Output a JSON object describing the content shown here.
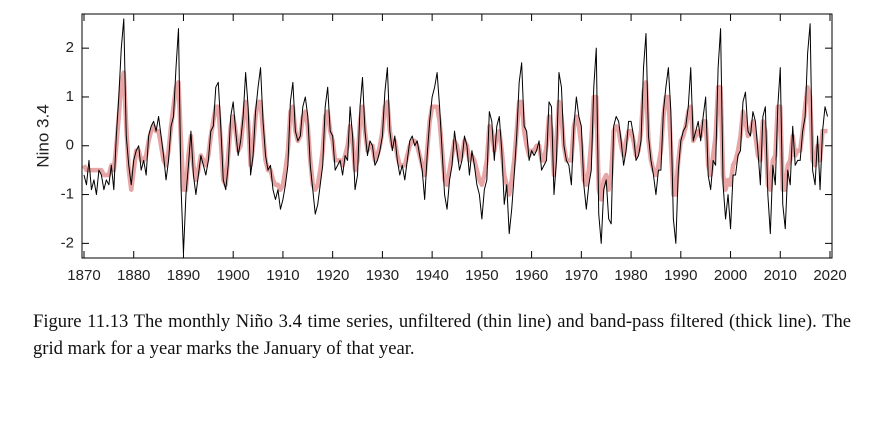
{
  "chart_data": {
    "type": "line",
    "ylabel": "Nino 3.4",
    "caption": "Figure 11.13 The monthly Niño 3.4 time series, unfiltered (thin line) and band-pass filtered (thick line). The grid mark for a year marks the January of that year.",
    "xlim": [
      1869.6,
      2020.4
    ],
    "ylim": [
      -2.3,
      2.7
    ],
    "xticks": [
      1870,
      1880,
      1890,
      1900,
      1910,
      1920,
      1930,
      1940,
      1950,
      1960,
      1970,
      1980,
      1990,
      2000,
      2010,
      2020
    ],
    "yticks": [
      -2,
      -1,
      0,
      1,
      2
    ],
    "x": [
      1870,
      1870.5,
      1871,
      1871.5,
      1872,
      1872.5,
      1873,
      1873.5,
      1874,
      1874.5,
      1875,
      1875.5,
      1876,
      1876.5,
      1877,
      1877.5,
      1878,
      1878.5,
      1879,
      1879.5,
      1880,
      1880.5,
      1881,
      1881.5,
      1882,
      1882.5,
      1883,
      1883.5,
      1884,
      1884.5,
      1885,
      1885.5,
      1886,
      1886.5,
      1887,
      1887.5,
      1888,
      1888.5,
      1889,
      1889.5,
      1890,
      1890.5,
      1891,
      1891.5,
      1892,
      1892.5,
      1893,
      1893.5,
      1894,
      1894.5,
      1895,
      1895.5,
      1896,
      1896.5,
      1897,
      1897.5,
      1898,
      1898.5,
      1899,
      1899.5,
      1900,
      1900.5,
      1901,
      1901.5,
      1902,
      1902.5,
      1903,
      1903.5,
      1904,
      1904.5,
      1905,
      1905.5,
      1906,
      1906.5,
      1907,
      1907.5,
      1908,
      1908.5,
      1909,
      1909.5,
      1910,
      1910.5,
      1911,
      1911.5,
      1912,
      1912.5,
      1913,
      1913.5,
      1914,
      1914.5,
      1915,
      1915.5,
      1916,
      1916.5,
      1917,
      1917.5,
      1918,
      1918.5,
      1919,
      1919.5,
      1920,
      1920.5,
      1921,
      1921.5,
      1922,
      1922.5,
      1923,
      1923.5,
      1924,
      1924.5,
      1925,
      1925.5,
      1926,
      1926.5,
      1927,
      1927.5,
      1928,
      1928.5,
      1929,
      1929.5,
      1930,
      1930.5,
      1931,
      1931.5,
      1932,
      1932.5,
      1933,
      1933.5,
      1934,
      1934.5,
      1935,
      1935.5,
      1936,
      1936.5,
      1937,
      1937.5,
      1938,
      1938.5,
      1939,
      1939.5,
      1940,
      1940.5,
      1941,
      1941.5,
      1942,
      1942.5,
      1943,
      1943.5,
      1944,
      1944.5,
      1945,
      1945.5,
      1946,
      1946.5,
      1947,
      1947.5,
      1948,
      1948.5,
      1949,
      1949.5,
      1950,
      1950.5,
      1951,
      1951.5,
      1952,
      1952.5,
      1953,
      1953.5,
      1954,
      1954.5,
      1955,
      1955.5,
      1956,
      1956.5,
      1957,
      1957.5,
      1958,
      1958.5,
      1959,
      1959.5,
      1960,
      1960.5,
      1961,
      1961.5,
      1962,
      1962.5,
      1963,
      1963.5,
      1964,
      1964.5,
      1965,
      1965.5,
      1966,
      1966.5,
      1967,
      1967.5,
      1968,
      1968.5,
      1969,
      1969.5,
      1970,
      1970.5,
      1971,
      1971.5,
      1972,
      1972.5,
      1973,
      1973.5,
      1974,
      1974.5,
      1975,
      1975.5,
      1976,
      1976.5,
      1977,
      1977.5,
      1978,
      1978.5,
      1979,
      1979.5,
      1980,
      1980.5,
      1981,
      1981.5,
      1982,
      1982.5,
      1983,
      1983.5,
      1984,
      1984.5,
      1985,
      1985.5,
      1986,
      1986.5,
      1987,
      1987.5,
      1988,
      1988.5,
      1989,
      1989.5,
      1990,
      1990.5,
      1991,
      1991.5,
      1992,
      1992.5,
      1993,
      1993.5,
      1994,
      1994.5,
      1995,
      1995.5,
      1996,
      1996.5,
      1997,
      1997.5,
      1998,
      1998.5,
      1999,
      1999.5,
      2000,
      2000.5,
      2001,
      2001.5,
      2002,
      2002.5,
      2003,
      2003.5,
      2004,
      2004.5,
      2005,
      2005.5,
      2006,
      2006.5,
      2007,
      2007.5,
      2008,
      2008.5,
      2009,
      2009.5,
      2010,
      2010.5,
      2011,
      2011.5,
      2012,
      2012.5,
      2013,
      2013.5,
      2014,
      2014.5,
      2015,
      2015.5,
      2016,
      2016.5,
      2017,
      2017.5,
      2018,
      2018.5,
      2019,
      2019.5
    ],
    "series": [
      {
        "color": "#e8a5a5",
        "width": 4.5,
        "values": [
          -0.4,
          -0.5,
          -0.5,
          -0.5,
          -0.5,
          -0.5,
          -0.5,
          -0.5,
          -0.6,
          -0.6,
          -0.6,
          -0.4,
          -0.5,
          0.0,
          0.6,
          1.3,
          1.5,
          0.4,
          -0.5,
          -0.9,
          -0.5,
          -0.1,
          -0.1,
          -0.3,
          -0.3,
          -0.2,
          0.1,
          0.3,
          0.4,
          0.3,
          0.3,
          0.0,
          -0.3,
          -0.4,
          -0.1,
          0.4,
          0.8,
          1.2,
          1.3,
          0.1,
          -0.9,
          -0.9,
          -0.2,
          0.2,
          -0.4,
          -0.7,
          -0.5,
          -0.2,
          -0.3,
          -0.4,
          -0.2,
          0.2,
          0.5,
          0.8,
          0.8,
          0.1,
          -0.7,
          -0.8,
          -0.2,
          0.4,
          0.6,
          0.3,
          -0.1,
          0.0,
          0.5,
          0.9,
          0.5,
          -0.4,
          0.0,
          0.6,
          0.9,
          0.9,
          0.3,
          -0.3,
          -0.5,
          -0.5,
          -0.7,
          -0.8,
          -0.8,
          -0.9,
          -0.8,
          -0.5,
          -0.1,
          0.7,
          0.8,
          0.3,
          0.1,
          0.2,
          0.6,
          0.7,
          0.4,
          -0.3,
          -0.8,
          -0.9,
          -0.8,
          -0.5,
          -0.1,
          0.6,
          0.7,
          0.3,
          0.1,
          -0.3,
          -0.3,
          -0.3,
          -0.4,
          -0.2,
          0.0,
          0.4,
          0.1,
          -0.5,
          -0.3,
          0.5,
          0.8,
          0.3,
          -0.1,
          0.0,
          0.0,
          -0.3,
          -0.2,
          0.0,
          0.3,
          0.8,
          0.9,
          0.3,
          0.0,
          0.1,
          -0.2,
          -0.4,
          -0.4,
          -0.4,
          -0.2,
          0.0,
          0.1,
          0.1,
          0.0,
          -0.2,
          -0.4,
          -0.6,
          -0.1,
          0.5,
          0.8,
          0.8,
          0.8,
          0.5,
          -0.1,
          -0.7,
          -0.8,
          -0.5,
          -0.2,
          0.1,
          0.0,
          -0.3,
          -0.2,
          0.1,
          0.0,
          -0.3,
          -0.2,
          -0.3,
          -0.5,
          -0.7,
          -0.8,
          -0.6,
          -0.3,
          0.4,
          0.3,
          -0.1,
          0.2,
          0.3,
          -0.1,
          -0.6,
          -0.8,
          -1.0,
          -0.7,
          -0.3,
          0.3,
          0.9,
          0.9,
          0.3,
          0.0,
          -0.2,
          -0.1,
          -0.1,
          0.0,
          0.0,
          -0.3,
          -0.3,
          0.0,
          0.6,
          0.3,
          -0.6,
          0.1,
          0.9,
          0.6,
          0.0,
          -0.3,
          -0.3,
          -0.3,
          0.4,
          0.6,
          0.4,
          0.0,
          -0.7,
          -0.8,
          -0.5,
          0.1,
          1.0,
          1.0,
          -0.9,
          -1.1,
          -0.7,
          -0.6,
          -0.9,
          -0.6,
          0.3,
          0.4,
          0.3,
          0.0,
          -0.2,
          0.1,
          0.3,
          0.3,
          0.1,
          -0.2,
          -0.1,
          0.3,
          1.1,
          1.3,
          0.1,
          -0.3,
          -0.5,
          -0.6,
          -0.4,
          -0.1,
          0.6,
          1.0,
          1.0,
          0.0,
          -1.0,
          -1.0,
          -0.3,
          0.1,
          0.2,
          0.4,
          0.7,
          0.8,
          0.1,
          0.2,
          0.3,
          0.2,
          0.5,
          0.5,
          -0.4,
          -0.6,
          -0.2,
          0.2,
          1.2,
          1.2,
          -0.6,
          -0.9,
          -0.7,
          -0.8,
          -0.4,
          -0.3,
          -0.1,
          0.2,
          0.7,
          0.5,
          0.2,
          0.3,
          0.5,
          0.2,
          -0.2,
          -0.3,
          0.5,
          0.3,
          -0.8,
          -0.9,
          -0.3,
          -0.2,
          0.8,
          0.8,
          -0.9,
          -0.9,
          -0.4,
          -0.3,
          0.2,
          -0.2,
          -0.1,
          -0.1,
          0.3,
          0.8,
          1.2,
          1.0,
          -0.3,
          -0.4,
          0.0,
          -0.3,
          0.3,
          0.3,
          0.3
        ]
      },
      {
        "color": "#000000",
        "width": 1,
        "values": [
          -0.6,
          -0.8,
          -0.3,
          -0.9,
          -0.7,
          -1.0,
          -0.5,
          -0.6,
          -0.9,
          -0.7,
          -0.8,
          -0.4,
          -0.9,
          0.2,
          1.0,
          2.0,
          2.6,
          0.2,
          -0.4,
          -0.8,
          -0.3,
          -0.1,
          0.0,
          -0.5,
          -0.3,
          -0.6,
          0.2,
          0.4,
          0.5,
          0.3,
          0.6,
          0.2,
          -0.2,
          -0.7,
          -0.3,
          0.4,
          0.6,
          1.6,
          2.4,
          -0.8,
          -2.2,
          -1.0,
          -0.4,
          0.3,
          -0.6,
          -1.0,
          -0.6,
          -0.2,
          -0.4,
          -0.6,
          -0.3,
          0.3,
          0.4,
          1.2,
          1.3,
          0.4,
          -0.7,
          -0.9,
          -0.4,
          0.6,
          0.9,
          0.3,
          -0.2,
          0.1,
          0.6,
          1.5,
          0.8,
          -0.6,
          -0.2,
          0.7,
          1.2,
          1.6,
          0.5,
          -0.2,
          -0.5,
          -0.4,
          -0.9,
          -1.1,
          -0.9,
          -1.3,
          -1.1,
          -0.8,
          -0.4,
          0.9,
          1.3,
          0.3,
          0.1,
          0.2,
          0.8,
          1.0,
          0.6,
          -0.4,
          -0.9,
          -1.4,
          -1.2,
          -0.8,
          -0.4,
          0.8,
          1.2,
          0.3,
          0.2,
          -0.5,
          -0.4,
          -0.3,
          -0.6,
          -0.2,
          -0.3,
          0.8,
          0.2,
          -0.9,
          -0.6,
          0.8,
          1.4,
          0.3,
          -0.2,
          0.1,
          0.0,
          -0.4,
          -0.3,
          -0.1,
          0.2,
          1.1,
          1.6,
          0.3,
          -0.1,
          0.2,
          -0.3,
          -0.6,
          -0.4,
          -0.7,
          -0.3,
          0.1,
          0.2,
          0.0,
          0.1,
          -0.2,
          -0.5,
          -1.1,
          -0.2,
          0.5,
          1.0,
          1.2,
          1.5,
          0.8,
          -0.1,
          -1.0,
          -1.3,
          -0.7,
          -0.4,
          0.3,
          -0.1,
          -0.5,
          -0.3,
          0.2,
          0.0,
          -0.6,
          -0.1,
          -0.4,
          -0.8,
          -1.0,
          -1.5,
          -0.9,
          -0.7,
          0.7,
          0.5,
          -0.3,
          0.4,
          0.6,
          -0.1,
          -1.2,
          -0.8,
          -1.8,
          -1.3,
          -0.6,
          0.2,
          1.3,
          1.7,
          0.4,
          0.3,
          -0.3,
          -0.1,
          -0.2,
          -0.1,
          0.1,
          -0.5,
          -0.4,
          -0.3,
          0.9,
          0.8,
          -1.0,
          -0.3,
          1.5,
          1.2,
          0.0,
          -0.3,
          -0.4,
          -0.8,
          0.4,
          1.0,
          0.6,
          0.4,
          -0.8,
          -1.3,
          -0.8,
          -0.5,
          1.2,
          2.0,
          -1.4,
          -2.0,
          -0.9,
          -0.7,
          -1.5,
          -1.6,
          0.4,
          0.6,
          0.5,
          0.1,
          -0.4,
          -0.1,
          0.5,
          0.5,
          0.2,
          -0.3,
          -0.2,
          0.1,
          1.6,
          2.3,
          0.2,
          -0.3,
          -0.6,
          -1.0,
          -0.5,
          -0.5,
          0.7,
          1.2,
          1.6,
          0.7,
          -1.5,
          -2.0,
          -0.5,
          0.1,
          0.3,
          0.4,
          0.8,
          1.6,
          0.1,
          0.3,
          0.5,
          0.1,
          0.6,
          1.0,
          -0.6,
          -0.9,
          -0.3,
          -0.4,
          1.6,
          2.4,
          -0.8,
          -1.5,
          -1.0,
          -1.7,
          -0.6,
          -0.6,
          -0.2,
          -0.1,
          0.9,
          1.1,
          0.3,
          0.2,
          0.7,
          0.5,
          -0.1,
          -0.8,
          0.6,
          0.8,
          -1.0,
          -1.8,
          -0.4,
          -0.8,
          0.8,
          1.6,
          -1.2,
          -1.7,
          -0.5,
          -0.8,
          0.4,
          -0.4,
          -0.3,
          -0.3,
          0.3,
          0.6,
          1.9,
          2.5,
          -0.5,
          -0.8,
          0.2,
          -0.9,
          0.3,
          0.8,
          0.6
        ]
      }
    ]
  }
}
